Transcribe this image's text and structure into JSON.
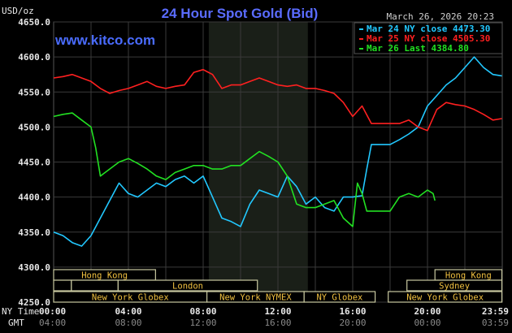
{
  "chart_data": {
    "type": "line",
    "title": "24 Hour Spot Gold (Bid)",
    "brand": "www.kitco.com",
    "timestamp": "March 26, 2026 20:23",
    "ylabel": "USD/oz",
    "ylim": [
      4250,
      4650
    ],
    "yticks": [
      "4650.0",
      "4600.0",
      "4550.0",
      "4500.0",
      "4450.0",
      "4400.0",
      "4350.0",
      "4300.0",
      "4250.0"
    ],
    "xlim_hours": [
      0,
      24
    ],
    "x_row_label": "NY Time",
    "gmt_row_label": "GMT",
    "xticks": [
      {
        "h": 0,
        "ny": "00:00",
        "gmt": "04:00"
      },
      {
        "h": 4,
        "ny": "04:00",
        "gmt": "08:00"
      },
      {
        "h": 8,
        "ny": "08:00",
        "gmt": "12:00"
      },
      {
        "h": 12,
        "ny": "12:00",
        "gmt": "16:00"
      },
      {
        "h": 16,
        "ny": "16:00",
        "gmt": "20:00"
      },
      {
        "h": 20,
        "ny": "20:00",
        "gmt": "00:00"
      },
      {
        "h": 23.98,
        "ny": "23:59",
        "gmt": "03:59"
      }
    ],
    "grid": true,
    "legend_placement": "top-right",
    "highlight_hours": [
      8.3,
      13.6
    ],
    "series": [
      {
        "name": "Mar 24 NY close 4473.30",
        "color": "#22c8ff",
        "points": [
          [
            0,
            4350
          ],
          [
            0.5,
            4345
          ],
          [
            1,
            4335
          ],
          [
            1.5,
            4330
          ],
          [
            2,
            4345
          ],
          [
            2.5,
            4370
          ],
          [
            3,
            4395
          ],
          [
            3.5,
            4420
          ],
          [
            4,
            4405
          ],
          [
            4.5,
            4400
          ],
          [
            5,
            4410
          ],
          [
            5.5,
            4420
          ],
          [
            6,
            4415
          ],
          [
            6.5,
            4425
          ],
          [
            7,
            4430
          ],
          [
            7.5,
            4420
          ],
          [
            8,
            4430
          ],
          [
            8.5,
            4400
          ],
          [
            9,
            4370
          ],
          [
            9.5,
            4365
          ],
          [
            10,
            4358
          ],
          [
            10.5,
            4390
          ],
          [
            11,
            4410
          ],
          [
            11.5,
            4405
          ],
          [
            12,
            4400
          ],
          [
            12.5,
            4430
          ],
          [
            13,
            4415
          ],
          [
            13.5,
            4390
          ],
          [
            14,
            4400
          ],
          [
            14.5,
            4385
          ],
          [
            15,
            4380
          ],
          [
            15.5,
            4400
          ],
          [
            16,
            4400
          ],
          [
            16.5,
            4402
          ],
          [
            16.75,
            4440
          ],
          [
            17,
            4475
          ],
          [
            17.5,
            4475
          ],
          [
            18,
            4475
          ],
          [
            18.5,
            4482
          ],
          [
            19,
            4490
          ],
          [
            19.5,
            4500
          ],
          [
            20,
            4530
          ],
          [
            20.5,
            4545
          ],
          [
            21,
            4560
          ],
          [
            21.5,
            4570
          ],
          [
            22,
            4585
          ],
          [
            22.5,
            4600
          ],
          [
            23,
            4585
          ],
          [
            23.5,
            4575
          ],
          [
            23.98,
            4573
          ]
        ]
      },
      {
        "name": "Mar 25 NY close 4505.30",
        "color": "#ff2020",
        "points": [
          [
            0,
            4570
          ],
          [
            0.5,
            4572
          ],
          [
            1,
            4575
          ],
          [
            1.5,
            4570
          ],
          [
            2,
            4565
          ],
          [
            2.5,
            4555
          ],
          [
            3,
            4548
          ],
          [
            3.5,
            4552
          ],
          [
            4,
            4555
          ],
          [
            4.5,
            4560
          ],
          [
            5,
            4565
          ],
          [
            5.5,
            4558
          ],
          [
            6,
            4555
          ],
          [
            6.5,
            4558
          ],
          [
            7,
            4560
          ],
          [
            7.5,
            4578
          ],
          [
            8,
            4582
          ],
          [
            8.5,
            4575
          ],
          [
            9,
            4555
          ],
          [
            9.5,
            4560
          ],
          [
            10,
            4560
          ],
          [
            10.5,
            4565
          ],
          [
            11,
            4570
          ],
          [
            11.5,
            4565
          ],
          [
            12,
            4560
          ],
          [
            12.5,
            4558
          ],
          [
            13,
            4560
          ],
          [
            13.5,
            4555
          ],
          [
            14,
            4555
          ],
          [
            14.5,
            4552
          ],
          [
            15,
            4548
          ],
          [
            15.5,
            4535
          ],
          [
            16,
            4515
          ],
          [
            16.5,
            4530
          ],
          [
            17,
            4505
          ],
          [
            17.5,
            4505
          ],
          [
            18,
            4505
          ],
          [
            18.5,
            4505
          ],
          [
            19,
            4510
          ],
          [
            19.5,
            4500
          ],
          [
            20,
            4495
          ],
          [
            20.5,
            4525
          ],
          [
            21,
            4535
          ],
          [
            21.5,
            4532
          ],
          [
            22,
            4530
          ],
          [
            22.5,
            4525
          ],
          [
            23,
            4518
          ],
          [
            23.5,
            4510
          ],
          [
            23.98,
            4512
          ]
        ]
      },
      {
        "name": "Mar 26 Last 4384.80",
        "color": "#22e022",
        "points": [
          [
            0,
            4515
          ],
          [
            0.5,
            4518
          ],
          [
            1,
            4520
          ],
          [
            1.5,
            4510
          ],
          [
            2,
            4500
          ],
          [
            2.25,
            4470
          ],
          [
            2.5,
            4430
          ],
          [
            3,
            4440
          ],
          [
            3.5,
            4450
          ],
          [
            4,
            4455
          ],
          [
            4.5,
            4448
          ],
          [
            5,
            4440
          ],
          [
            5.5,
            4430
          ],
          [
            6,
            4425
          ],
          [
            6.5,
            4435
          ],
          [
            7,
            4440
          ],
          [
            7.5,
            4445
          ],
          [
            8,
            4445
          ],
          [
            8.5,
            4440
          ],
          [
            9,
            4440
          ],
          [
            9.5,
            4445
          ],
          [
            10,
            4445
          ],
          [
            10.5,
            4455
          ],
          [
            11,
            4465
          ],
          [
            11.5,
            4458
          ],
          [
            12,
            4450
          ],
          [
            12.5,
            4430
          ],
          [
            13,
            4390
          ],
          [
            13.5,
            4385
          ],
          [
            14,
            4385
          ],
          [
            14.5,
            4390
          ],
          [
            15,
            4395
          ],
          [
            15.5,
            4370
          ],
          [
            16,
            4358
          ],
          [
            16.25,
            4420
          ],
          [
            16.5,
            4405
          ],
          [
            16.75,
            4380
          ],
          [
            17,
            4380
          ],
          [
            17.5,
            4380
          ],
          [
            18,
            4380
          ],
          [
            18.5,
            4400
          ],
          [
            19,
            4405
          ],
          [
            19.5,
            4400
          ],
          [
            20,
            4410
          ],
          [
            20.3,
            4405
          ],
          [
            20.4,
            4395
          ]
        ]
      }
    ],
    "sessions": [
      {
        "row": 0,
        "start": 0,
        "end": 5.45,
        "label": "Hong Kong"
      },
      {
        "row": 0,
        "start": 20.4,
        "end": 23.98,
        "label": "Hong Kong"
      },
      {
        "row": 1,
        "start": 0,
        "end": 0.95,
        "label": ""
      },
      {
        "row": 1,
        "start": 0.95,
        "end": 3.45,
        "label": ""
      },
      {
        "row": 1,
        "start": 3.45,
        "end": 10.9,
        "label": "London"
      },
      {
        "row": 1,
        "start": 18.9,
        "end": 23.98,
        "label": "Sydney"
      },
      {
        "row": 2,
        "start": 0,
        "end": 8.2,
        "label": "New York Globex"
      },
      {
        "row": 2,
        "start": 8.2,
        "end": 13.4,
        "label": "New York NYMEX"
      },
      {
        "row": 2,
        "start": 13.4,
        "end": 17.2,
        "label": "NY Globex"
      },
      {
        "row": 2,
        "start": 17.9,
        "end": 23.98,
        "label": "New York Globex"
      }
    ],
    "colors": {
      "title": "#5a6cff",
      "brand": "#4a6cff",
      "session_text": "#f0c040",
      "session_box": "#c8c8a0",
      "grid": "#3a3a3a",
      "highlight": "#1a1f18",
      "tick": "#e8e8e8",
      "gmt_tick": "#8a8a8a"
    }
  }
}
